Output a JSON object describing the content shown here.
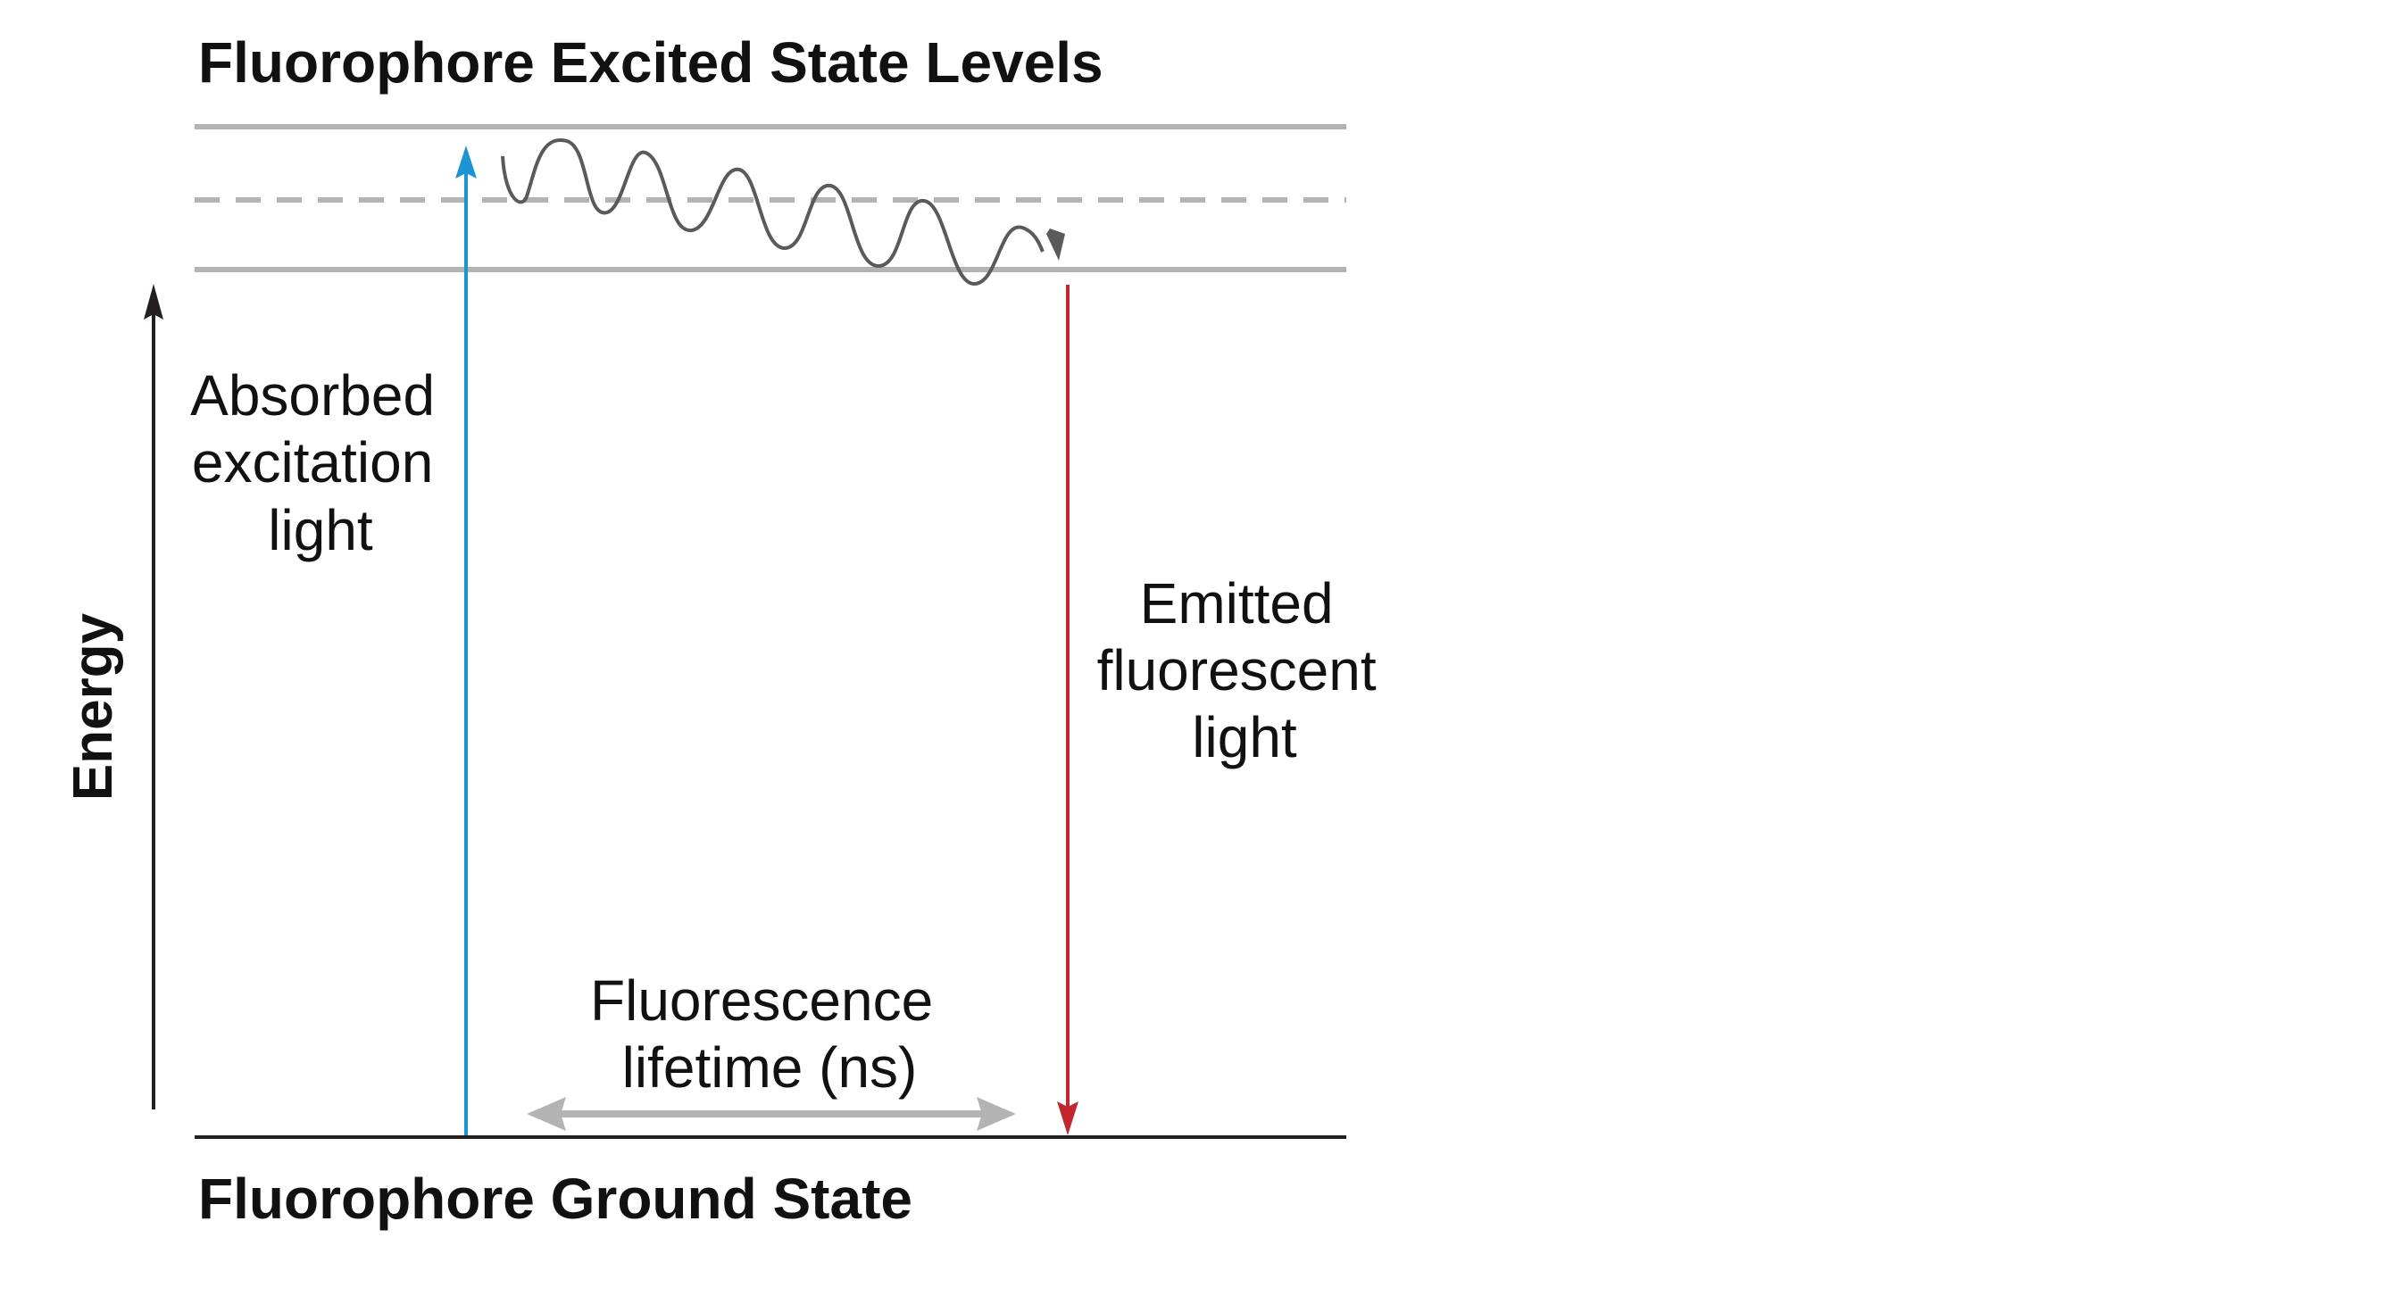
{
  "title_excited": "Fluorophore Excited State Levels",
  "title_ground": "Fluorophore Ground State",
  "axis_label": "Energy",
  "absorbed": [
    "Absorbed",
    "excitation",
    "light"
  ],
  "emitted": [
    "Emitted",
    "fluorescent",
    "light"
  ],
  "lifetime": [
    "Fluorescence",
    "lifetime (ns)"
  ],
  "colors": {
    "excitation": "#1b95d3",
    "emission": "#c1272d",
    "levels": "#b3b3b3",
    "relaxation": "#5a5a5c",
    "ground": "#231f20"
  }
}
